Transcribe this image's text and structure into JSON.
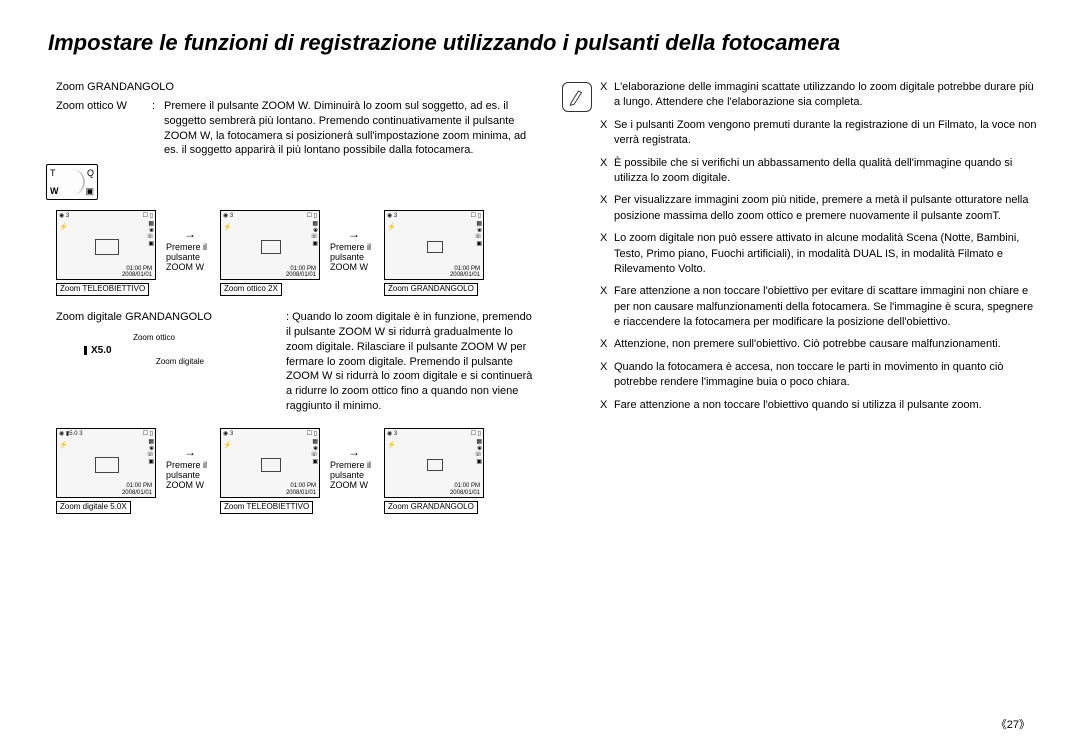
{
  "title": "Impostare le funzioni di registrazione utilizzando i pulsanti della fotocamera",
  "left": {
    "subhead": "Zoom GRANDANGOLO",
    "optical": {
      "label": "Zoom ottico W",
      "colon": ":",
      "text": "Premere il pulsante ZOOM W. Diminuirà lo zoom sul soggetto, ad es. il soggetto sembrerà più lontano. Premendo continuativamente il pulsante ZOOM W, la fotocamera si posizionerà sull'impostazione zoom minima, ad es. il soggetto apparirà il più lontano possibile dalla fotocamera."
    },
    "tw": {
      "t": "T",
      "w": "W",
      "q": "Q",
      "m": "▣"
    },
    "arrow": "Premere il pulsante ZOOM W",
    "row1": {
      "thumbs": [
        {
          "top_l": "◉   3",
          "top_r": "☐ ▯",
          "flash": "⚡",
          "time1": "01:00 PM",
          "time2": "2008/01/01",
          "caption": "Zoom TELEOBIETTIVO",
          "focus_w": 24,
          "focus_h": 16,
          "digi": ""
        },
        {
          "top_l": "◉   3",
          "top_r": "☐ ▯",
          "flash": "⚡",
          "time1": "01:00 PM",
          "time2": "2008/01/01",
          "caption": "Zoom ottico 2X",
          "focus_w": 20,
          "focus_h": 14,
          "digi": ""
        },
        {
          "top_l": "◉   3",
          "top_r": "☐ ▯",
          "flash": "⚡",
          "time1": "01:00 PM",
          "time2": "2008/01/01",
          "caption": "Zoom GRANDANGOLO",
          "focus_w": 16,
          "focus_h": 12,
          "digi": ""
        }
      ]
    },
    "digital": {
      "label": "Zoom digitale GRANDANGOLO",
      "colon": ":",
      "text": "Quando lo zoom digitale è in funzione, premendo il pulsante ZOOM W si ridurrà gradualmente lo zoom digitale. Rilasciare il pulsante ZOOM W per fermare lo zoom digitale. Premendo il pulsante ZOOM W si ridurrà lo zoom digitale e si continuerà a ridurre lo zoom ottico fino a quando non viene raggiunto il minimo.",
      "zoombar": {
        "label_optical": "Zoom ottico",
        "label_digital": "Zoom digitale",
        "x": "X5.0"
      }
    },
    "row2": {
      "thumbs": [
        {
          "top_l": "◉ ▮5.0  3",
          "top_r": "☐ ▯",
          "flash": "⚡",
          "time1": "01:00 PM",
          "time2": "2008/01/01",
          "caption": "Zoom digitale 5.0X",
          "focus_w": 24,
          "focus_h": 16,
          "digi": ""
        },
        {
          "top_l": "◉   3",
          "top_r": "☐ ▯",
          "flash": "⚡",
          "time1": "01:00 PM",
          "time2": "2008/01/01",
          "caption": "Zoom TELEOBIETTIVO",
          "focus_w": 20,
          "focus_h": 14,
          "digi": ""
        },
        {
          "top_l": "◉   3",
          "top_r": "☐ ▯",
          "flash": "⚡",
          "time1": "01:00 PM",
          "time2": "2008/01/01",
          "caption": "Zoom GRANDANGOLO",
          "focus_w": 16,
          "focus_h": 12,
          "digi": ""
        }
      ]
    }
  },
  "notes": {
    "bullet": "X",
    "items": [
      "L'elaborazione delle immagini scattate utilizzando lo zoom digitale potrebbe durare più a lungo. Attendere che l'elaborazione sia completa.",
      "Se i pulsanti Zoom vengono premuti durante la registrazione di un Filmato, la voce non verrà registrata.",
      "È possibile che si verifichi un abbassamento della qualità dell'immagine quando si utilizza lo zoom digitale.",
      "Per visualizzare immagini zoom più nitide, premere a metà il pulsante otturatore nella posizione massima dello zoom ottico e premere nuovamente il pulsante zoomT.",
      "Lo zoom digitale non può essere attivato in alcune modalità Scena (Notte, Bambini, Testo, Primo piano, Fuochi artificiali), in modalità DUAL IS, in modalità Filmato e Rilevamento Volto.",
      "Fare attenzione a non toccare l'obiettivo per evitare di scattare immagini non chiare e per non causare malfunzionamenti della fotocamera. Se l'immagine è scura, spegnere e riaccendere la fotocamera per modificare la posizione dell'obiettivo.",
      "Attenzione, non premere sull'obiettivo. Ciò potrebbe causare malfunzionamenti.",
      "Quando la fotocamera è accesa, non toccare le parti in movimento in quanto ciò potrebbe rendere l'immagine buia o poco chiara.",
      "Fare attenzione a non toccare l'obiettivo quando si utilizza il pulsante zoom."
    ]
  },
  "page": "《27》"
}
